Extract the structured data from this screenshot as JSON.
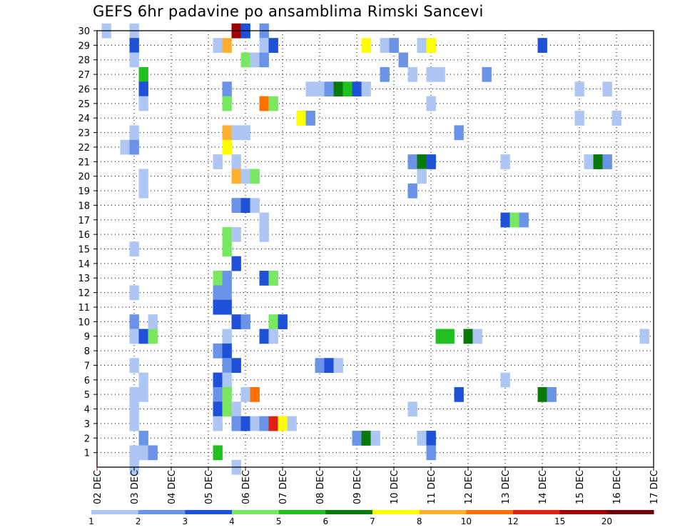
{
  "chart_data": {
    "type": "heatmap",
    "title": "GEFS 6hr padavine po ansamblima Rimski Sancevi",
    "xlabel": "",
    "ylabel": "",
    "x_tick_labels": [
      "02 DEC",
      "03 DEC",
      "04 DEC",
      "05 DEC",
      "06 DEC",
      "07 DEC",
      "08 DEC",
      "09 DEC",
      "10 DEC",
      "11 DEC",
      "12 DEC",
      "13 DEC",
      "14 DEC",
      "15 DEC",
      "16 DEC",
      "17 DEC"
    ],
    "y_tick_labels": [
      "1",
      "2",
      "3",
      "4",
      "5",
      "6",
      "7",
      "8",
      "9",
      "10",
      "11",
      "12",
      "13",
      "14",
      "15",
      "16",
      "17",
      "18",
      "19",
      "20",
      "21",
      "22",
      "23",
      "24",
      "25",
      "26",
      "27",
      "28",
      "29",
      "30"
    ],
    "x_range_steps": [
      0,
      60
    ],
    "y_range": [
      0,
      30
    ],
    "grid": true,
    "colorbar": {
      "labels": [
        "1",
        "2",
        "3",
        "4",
        "5",
        "6",
        "7",
        "8",
        "10",
        "12",
        "15",
        "20"
      ],
      "colors": [
        "#aec6f3",
        "#6b93e8",
        "#1e50d8",
        "#78e860",
        "#20c020",
        "#087808",
        "#ffff00",
        "#ffb030",
        "#ff7000",
        "#e02010",
        "#a00000",
        "#700000"
      ]
    },
    "cells_note_format": "[member, step_from_02DEC_00UTC, class_index]",
    "cells": [
      [
        30,
        1,
        0
      ],
      [
        30,
        4,
        0
      ],
      [
        30,
        15,
        10
      ],
      [
        30,
        16,
        2
      ],
      [
        30,
        18,
        1
      ],
      [
        29,
        4,
        2
      ],
      [
        29,
        13,
        0
      ],
      [
        29,
        14,
        7
      ],
      [
        29,
        18,
        0
      ],
      [
        29,
        19,
        2
      ],
      [
        29,
        29,
        6
      ],
      [
        29,
        31,
        0
      ],
      [
        29,
        32,
        1
      ],
      [
        29,
        35,
        0
      ],
      [
        29,
        36,
        6
      ],
      [
        29,
        48,
        2
      ],
      [
        28,
        4,
        0
      ],
      [
        28,
        16,
        3
      ],
      [
        28,
        17,
        0
      ],
      [
        28,
        18,
        1
      ],
      [
        28,
        33,
        1
      ],
      [
        27,
        5,
        4
      ],
      [
        27,
        31,
        1
      ],
      [
        27,
        34,
        0
      ],
      [
        27,
        36,
        0
      ],
      [
        27,
        37,
        0
      ],
      [
        27,
        42,
        1
      ],
      [
        26,
        5,
        2
      ],
      [
        26,
        14,
        1
      ],
      [
        26,
        23,
        0
      ],
      [
        26,
        24,
        0
      ],
      [
        26,
        25,
        1
      ],
      [
        26,
        26,
        5
      ],
      [
        26,
        27,
        4
      ],
      [
        26,
        28,
        2
      ],
      [
        26,
        29,
        0
      ],
      [
        26,
        52,
        0
      ],
      [
        26,
        55,
        0
      ],
      [
        25,
        5,
        0
      ],
      [
        25,
        14,
        3
      ],
      [
        25,
        18,
        8
      ],
      [
        25,
        19,
        3
      ],
      [
        25,
        36,
        0
      ],
      [
        24,
        22,
        6
      ],
      [
        24,
        23,
        1
      ],
      [
        24,
        52,
        0
      ],
      [
        24,
        56,
        0
      ],
      [
        23,
        4,
        0
      ],
      [
        23,
        14,
        7
      ],
      [
        23,
        15,
        0
      ],
      [
        23,
        16,
        0
      ],
      [
        23,
        39,
        1
      ],
      [
        22,
        3,
        0
      ],
      [
        22,
        4,
        1
      ],
      [
        22,
        14,
        6
      ],
      [
        21,
        13,
        0
      ],
      [
        21,
        15,
        0
      ],
      [
        21,
        34,
        1
      ],
      [
        21,
        35,
        5
      ],
      [
        21,
        36,
        2
      ],
      [
        21,
        44,
        0
      ],
      [
        21,
        53,
        0
      ],
      [
        21,
        54,
        5
      ],
      [
        21,
        55,
        1
      ],
      [
        20,
        5,
        0
      ],
      [
        20,
        15,
        7
      ],
      [
        20,
        16,
        0
      ],
      [
        20,
        17,
        3
      ],
      [
        20,
        35,
        0
      ],
      [
        19,
        5,
        0
      ],
      [
        19,
        34,
        1
      ],
      [
        18,
        15,
        1
      ],
      [
        18,
        16,
        2
      ],
      [
        18,
        17,
        0
      ],
      [
        17,
        18,
        0
      ],
      [
        17,
        44,
        2
      ],
      [
        17,
        45,
        3
      ],
      [
        17,
        46,
        1
      ],
      [
        16,
        14,
        3
      ],
      [
        16,
        15,
        0
      ],
      [
        16,
        18,
        0
      ],
      [
        15,
        4,
        0
      ],
      [
        15,
        14,
        3
      ],
      [
        14,
        15,
        2
      ],
      [
        13,
        13,
        3
      ],
      [
        13,
        14,
        1
      ],
      [
        13,
        18,
        2
      ],
      [
        13,
        19,
        3
      ],
      [
        12,
        4,
        0
      ],
      [
        12,
        13,
        1
      ],
      [
        12,
        14,
        1
      ],
      [
        11,
        13,
        2
      ],
      [
        11,
        14,
        2
      ],
      [
        10,
        4,
        1
      ],
      [
        10,
        6,
        0
      ],
      [
        10,
        15,
        2
      ],
      [
        10,
        16,
        1
      ],
      [
        10,
        19,
        3
      ],
      [
        10,
        20,
        2
      ],
      [
        9,
        4,
        0
      ],
      [
        9,
        5,
        2
      ],
      [
        9,
        6,
        3
      ],
      [
        9,
        14,
        0
      ],
      [
        9,
        18,
        2
      ],
      [
        9,
        19,
        0
      ],
      [
        9,
        37,
        4
      ],
      [
        9,
        38,
        4
      ],
      [
        9,
        40,
        5
      ],
      [
        9,
        41,
        0
      ],
      [
        9,
        59,
        0
      ],
      [
        8,
        13,
        1
      ],
      [
        8,
        14,
        2
      ],
      [
        7,
        4,
        0
      ],
      [
        7,
        14,
        1
      ],
      [
        7,
        15,
        2
      ],
      [
        7,
        24,
        1
      ],
      [
        7,
        25,
        2
      ],
      [
        7,
        26,
        0
      ],
      [
        6,
        5,
        0
      ],
      [
        6,
        13,
        2
      ],
      [
        6,
        14,
        0
      ],
      [
        6,
        44,
        0
      ],
      [
        5,
        4,
        0
      ],
      [
        5,
        5,
        0
      ],
      [
        5,
        13,
        1
      ],
      [
        5,
        14,
        3
      ],
      [
        5,
        16,
        0
      ],
      [
        5,
        17,
        8
      ],
      [
        5,
        39,
        2
      ],
      [
        5,
        48,
        5
      ],
      [
        5,
        49,
        1
      ],
      [
        4,
        4,
        0
      ],
      [
        4,
        13,
        2
      ],
      [
        4,
        14,
        3
      ],
      [
        4,
        15,
        0
      ],
      [
        4,
        34,
        0
      ],
      [
        3,
        4,
        0
      ],
      [
        3,
        13,
        0
      ],
      [
        3,
        15,
        1
      ],
      [
        3,
        16,
        2
      ],
      [
        3,
        17,
        0
      ],
      [
        3,
        18,
        1
      ],
      [
        3,
        19,
        9
      ],
      [
        3,
        20,
        6
      ],
      [
        3,
        21,
        0
      ],
      [
        2,
        5,
        1
      ],
      [
        2,
        28,
        1
      ],
      [
        2,
        29,
        5
      ],
      [
        2,
        30,
        0
      ],
      [
        2,
        35,
        0
      ],
      [
        2,
        36,
        2
      ],
      [
        1,
        4,
        0
      ],
      [
        1,
        5,
        0
      ],
      [
        1,
        6,
        1
      ],
      [
        1,
        13,
        4
      ],
      [
        1,
        36,
        1
      ],
      [
        0,
        4,
        0
      ],
      [
        0,
        15,
        0
      ]
    ]
  }
}
